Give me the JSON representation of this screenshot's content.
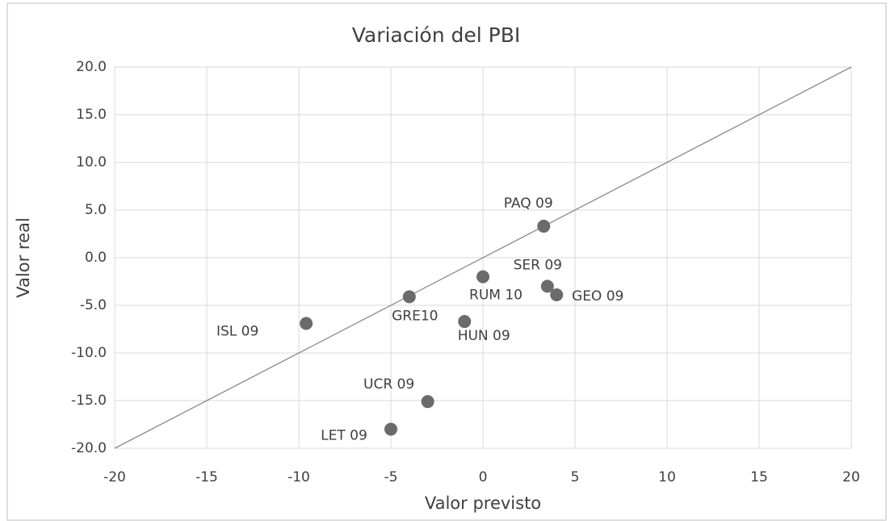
{
  "chart_data": {
    "type": "scatter",
    "title": "Variación del PBI",
    "xlabel": "Valor previsto",
    "ylabel": "Valor real",
    "series": [
      {
        "color": "#6b6b6b",
        "x": [
          3.3,
          3.5,
          0.0,
          4.0,
          -4.0,
          -1.0,
          -9.6,
          -3.0,
          -5.0
        ],
        "values": [
          3.3,
          -3.0,
          -2.0,
          -3.9,
          -4.1,
          -6.7,
          -6.9,
          -15.1,
          -18.0
        ],
        "labels": [
          "PAQ 09",
          "SER 09",
          "RUM 10",
          "GEO 09",
          "GRE10",
          "HUN 09",
          "ISL 09",
          "UCR 09",
          "LET 09"
        ]
      }
    ],
    "diagonal": {
      "x": [
        -20,
        20
      ],
      "values": [
        -20,
        20
      ],
      "color": "#8a8a8a"
    },
    "xlim": [
      -20,
      20
    ],
    "xticks": [
      -20,
      -15,
      -10,
      -5,
      0,
      5,
      10,
      15,
      20
    ],
    "ylim": [
      -20,
      20
    ],
    "yticks": [
      {
        "value": -20,
        "label": "-20.0"
      },
      {
        "value": -15,
        "label": "-15.0"
      },
      {
        "value": -10,
        "label": "-10.0"
      },
      {
        "value": -5,
        "label": "-5.0"
      },
      {
        "value": 0,
        "label": "0.0"
      },
      {
        "value": 5,
        "label": "5.0"
      },
      {
        "value": 10,
        "label": "10.0"
      },
      {
        "value": 15,
        "label": "15.0"
      },
      {
        "value": 20,
        "label": "20.0"
      }
    ],
    "grid": true
  }
}
